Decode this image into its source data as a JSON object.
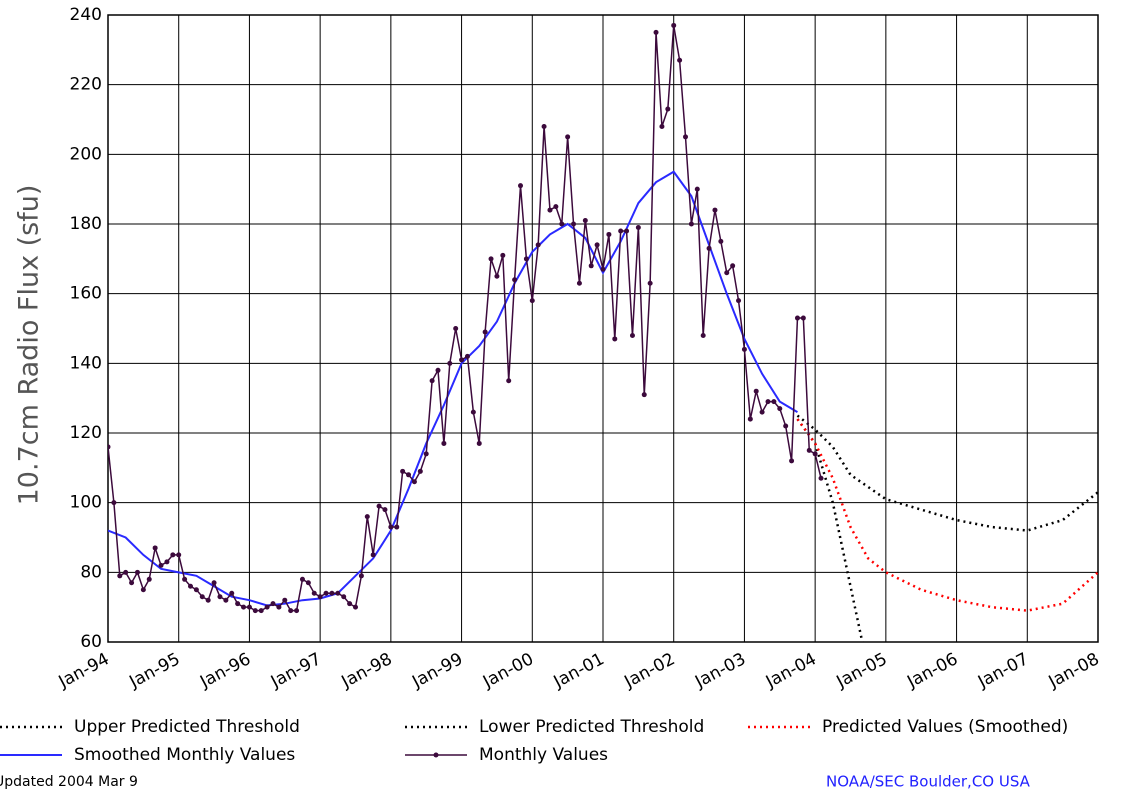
{
  "chart_data": {
    "type": "line",
    "y_label": "10.7cm Radio Flux (sfu)",
    "xlim": [
      "1994-01",
      "2008-01"
    ],
    "xticks": [
      {
        "value": "1994-01",
        "label": "Jan-94"
      },
      {
        "value": "1995-01",
        "label": "Jan-95"
      },
      {
        "value": "1996-01",
        "label": "Jan-96"
      },
      {
        "value": "1997-01",
        "label": "Jan-97"
      },
      {
        "value": "1998-01",
        "label": "Jan-98"
      },
      {
        "value": "1999-01",
        "label": "Jan-99"
      },
      {
        "value": "2000-01",
        "label": "Jan-00"
      },
      {
        "value": "2001-01",
        "label": "Jan-01"
      },
      {
        "value": "2002-01",
        "label": "Jan-02"
      },
      {
        "value": "2003-01",
        "label": "Jan-03"
      },
      {
        "value": "2004-01",
        "label": "Jan-04"
      },
      {
        "value": "2005-01",
        "label": "Jan-05"
      },
      {
        "value": "2006-01",
        "label": "Jan-06"
      },
      {
        "value": "2007-01",
        "label": "Jan-07"
      },
      {
        "value": "2008-01",
        "label": "Jan-08"
      }
    ],
    "ylim": [
      60,
      240
    ],
    "yticks": [
      60,
      80,
      100,
      120,
      140,
      160,
      180,
      200,
      220,
      240
    ],
    "grid": true,
    "series": [
      {
        "name": "Upper Predicted Threshold",
        "color": "#000000",
        "line_style": "dotted",
        "x": [
          "2003-10",
          "2004-01",
          "2004-04",
          "2004-07",
          "2005-01",
          "2005-07",
          "2006-01",
          "2006-07",
          "2007-01",
          "2007-07",
          "2008-01"
        ],
        "values": [
          125,
          121,
          116,
          108,
          101,
          98,
          95,
          93,
          92,
          95,
          103
        ]
      },
      {
        "name": "Lower Predicted Threshold",
        "color": "#000000",
        "line_style": "dotted",
        "x": [
          "2003-10",
          "2004-01",
          "2004-04",
          "2004-07",
          "2004-09"
        ],
        "values": [
          124,
          117,
          100,
          76,
          60
        ]
      },
      {
        "name": "Predicted Values (Smoothed)",
        "color": "#ff0000",
        "line_style": "dotted",
        "x": [
          "2003-10",
          "2004-01",
          "2004-04",
          "2004-07",
          "2004-10",
          "2005-01",
          "2005-07",
          "2006-01",
          "2006-07",
          "2007-01",
          "2007-07",
          "2008-01"
        ],
        "values": [
          124,
          117,
          107,
          93,
          84,
          80,
          75,
          72,
          70,
          69,
          71,
          80
        ]
      },
      {
        "name": "Smoothed Monthly Values",
        "color": "#2a2aff",
        "line_style": "solid",
        "x": [
          "1994-01",
          "1994-04",
          "1994-07",
          "1994-10",
          "1995-01",
          "1995-04",
          "1995-07",
          "1995-10",
          "1996-01",
          "1996-04",
          "1996-07",
          "1996-10",
          "1997-01",
          "1997-04",
          "1997-07",
          "1997-10",
          "1998-01",
          "1998-04",
          "1998-07",
          "1998-10",
          "1999-01",
          "1999-04",
          "1999-07",
          "1999-10",
          "2000-01",
          "2000-04",
          "2000-07",
          "2000-10",
          "2001-01",
          "2001-04",
          "2001-07",
          "2001-10",
          "2002-01",
          "2002-04",
          "2002-07",
          "2002-10",
          "2003-01",
          "2003-04",
          "2003-07",
          "2003-10"
        ],
        "values": [
          92,
          90,
          85,
          81,
          80,
          79,
          76,
          73,
          72,
          70.5,
          71,
          72,
          72.5,
          74,
          79,
          84,
          92,
          104,
          117,
          128,
          140,
          145,
          152,
          163,
          172,
          177,
          180,
          176,
          166,
          175,
          186,
          192,
          195,
          188,
          174,
          160,
          147,
          137,
          129,
          126
        ]
      },
      {
        "name": "Monthly Values",
        "color": "#3c0a3c",
        "line_style": "solid",
        "marker": "dot",
        "x": [
          "1994-01",
          "1994-02",
          "1994-03",
          "1994-04",
          "1994-05",
          "1994-06",
          "1994-07",
          "1994-08",
          "1994-09",
          "1994-10",
          "1994-11",
          "1994-12",
          "1995-01",
          "1995-02",
          "1995-03",
          "1995-04",
          "1995-05",
          "1995-06",
          "1995-07",
          "1995-08",
          "1995-09",
          "1995-10",
          "1995-11",
          "1995-12",
          "1996-01",
          "1996-02",
          "1996-03",
          "1996-04",
          "1996-05",
          "1996-06",
          "1996-07",
          "1996-08",
          "1996-09",
          "1996-10",
          "1996-11",
          "1996-12",
          "1997-01",
          "1997-02",
          "1997-03",
          "1997-04",
          "1997-05",
          "1997-06",
          "1997-07",
          "1997-08",
          "1997-09",
          "1997-10",
          "1997-11",
          "1997-12",
          "1998-01",
          "1998-02",
          "1998-03",
          "1998-04",
          "1998-05",
          "1998-06",
          "1998-07",
          "1998-08",
          "1998-09",
          "1998-10",
          "1998-11",
          "1998-12",
          "1999-01",
          "1999-02",
          "1999-03",
          "1999-04",
          "1999-05",
          "1999-06",
          "1999-07",
          "1999-08",
          "1999-09",
          "1999-10",
          "1999-11",
          "1999-12",
          "2000-01",
          "2000-02",
          "2000-03",
          "2000-04",
          "2000-05",
          "2000-06",
          "2000-07",
          "2000-08",
          "2000-09",
          "2000-10",
          "2000-11",
          "2000-12",
          "2001-01",
          "2001-02",
          "2001-03",
          "2001-04",
          "2001-05",
          "2001-06",
          "2001-07",
          "2001-08",
          "2001-09",
          "2001-10",
          "2001-11",
          "2001-12",
          "2002-01",
          "2002-02",
          "2002-03",
          "2002-04",
          "2002-05",
          "2002-06",
          "2002-07",
          "2002-08",
          "2002-09",
          "2002-10",
          "2002-11",
          "2002-12",
          "2003-01",
          "2003-02",
          "2003-03",
          "2003-04",
          "2003-05",
          "2003-06",
          "2003-07",
          "2003-08",
          "2003-09",
          "2003-10",
          "2003-11",
          "2003-12",
          "2004-01",
          "2004-02"
        ],
        "values": [
          116,
          100,
          79,
          80,
          77,
          80,
          75,
          78,
          87,
          82,
          83,
          85,
          85,
          78,
          76,
          75,
          73,
          72,
          77,
          73,
          72,
          74,
          71,
          70,
          70,
          69,
          69,
          70,
          71,
          70,
          72,
          69,
          69,
          78,
          77,
          74,
          73,
          74,
          74,
          74,
          73,
          71,
          70,
          79,
          96,
          85,
          99,
          98,
          93,
          93,
          109,
          108,
          106,
          109,
          114,
          135,
          138,
          117,
          140,
          150,
          141,
          142,
          126,
          117,
          149,
          170,
          165,
          171,
          135,
          164,
          191,
          170,
          158,
          174,
          208,
          184,
          185,
          180,
          205,
          180,
          163,
          181,
          168,
          174,
          167,
          177,
          147,
          178,
          178,
          148,
          179,
          131,
          163,
          235,
          208,
          213,
          237,
          227,
          205,
          180,
          190,
          148,
          173,
          184,
          175,
          166,
          168,
          158,
          144,
          124,
          132,
          126,
          129,
          129,
          127,
          122,
          112,
          153,
          153,
          115,
          114,
          107
        ]
      }
    ],
    "footer_left": "Updated 2004 Mar 9",
    "footer_right": "NOAA/SEC Boulder,CO USA"
  }
}
